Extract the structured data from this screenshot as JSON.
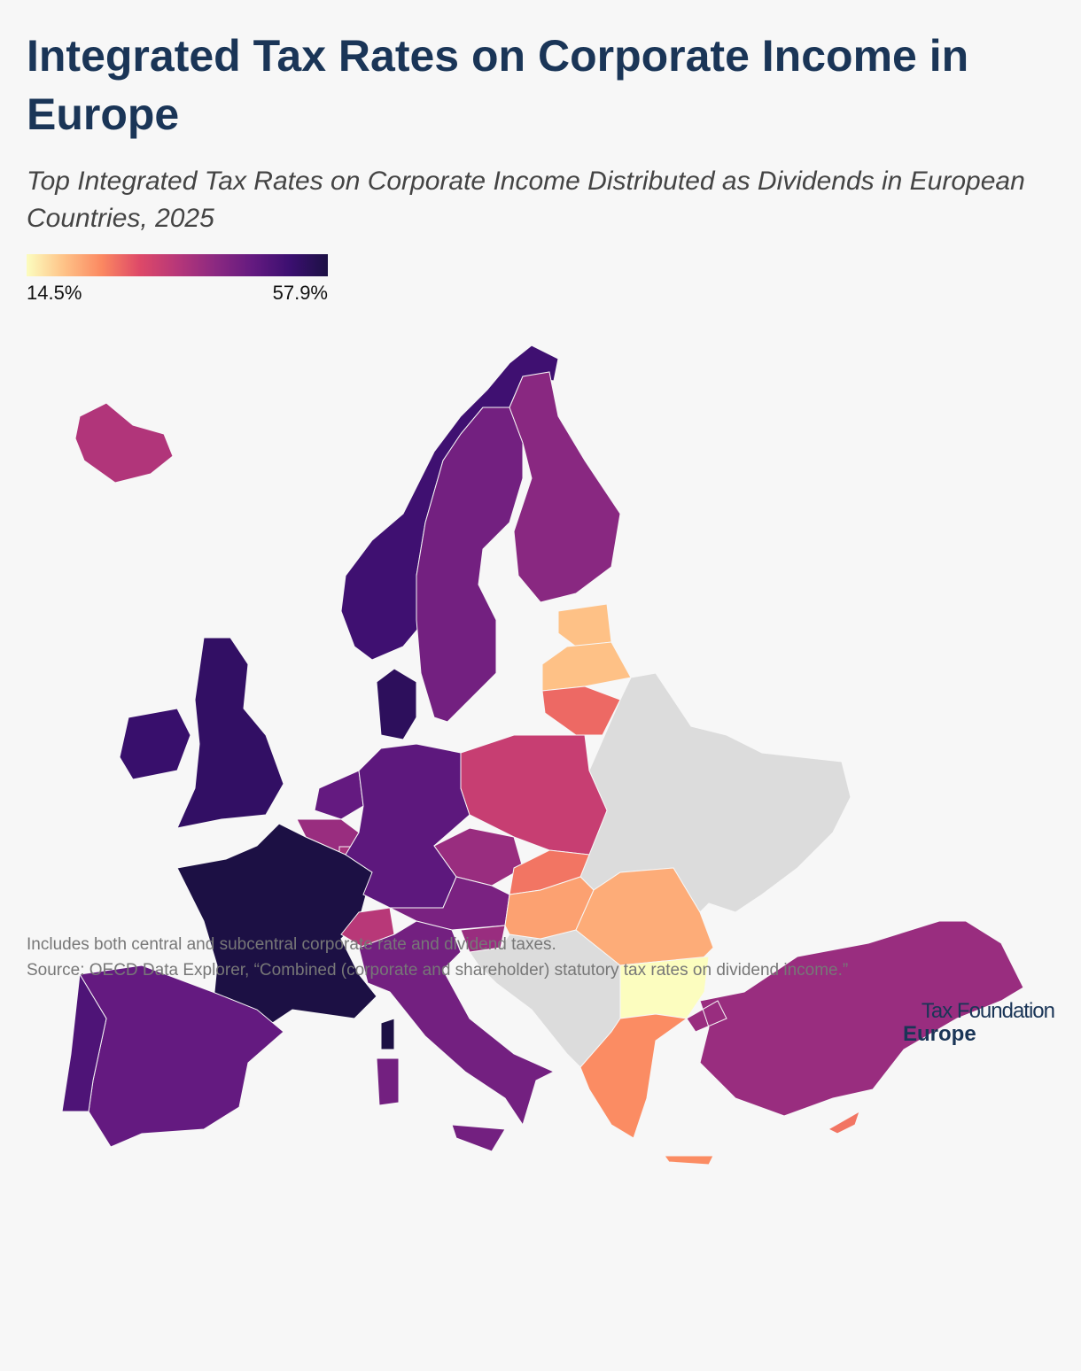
{
  "chart_data": {
    "type": "choropleth",
    "title": "Integrated Tax Rates on Corporate Income in Europe",
    "subtitle": "Top Integrated Tax Rates on Corporate Income Distributed as Dividends in European Countries, 2025",
    "colorscale": [
      "#fcfdbf",
      "#fec287",
      "#fb8861",
      "#de4968",
      "#b73779",
      "#8c2981",
      "#641a80",
      "#3b0f70",
      "#1c1044"
    ],
    "legend": {
      "min": {
        "value": 14.5,
        "label": "14.5%"
      },
      "max": {
        "value": 57.9,
        "label": "57.9%"
      }
    },
    "values": [
      37,
      52,
      45,
      42,
      20,
      20,
      28,
      55,
      54,
      53,
      47,
      40,
      38,
      57.9,
      48,
      34,
      40,
      27,
      44,
      36,
      23,
      40,
      45,
      47,
      50,
      22,
      14.5,
      25,
      40,
      27
    ],
    "note": "Includes both central and subcentral corporate rate and dividend taxes.",
    "source": "Source: OECD Data Explorer, “Combined (corporate and shareholder) statutory tax rates on dividend income.”"
  },
  "logo": {
    "line1": "Tax Foundation",
    "line2": "Europe"
  }
}
